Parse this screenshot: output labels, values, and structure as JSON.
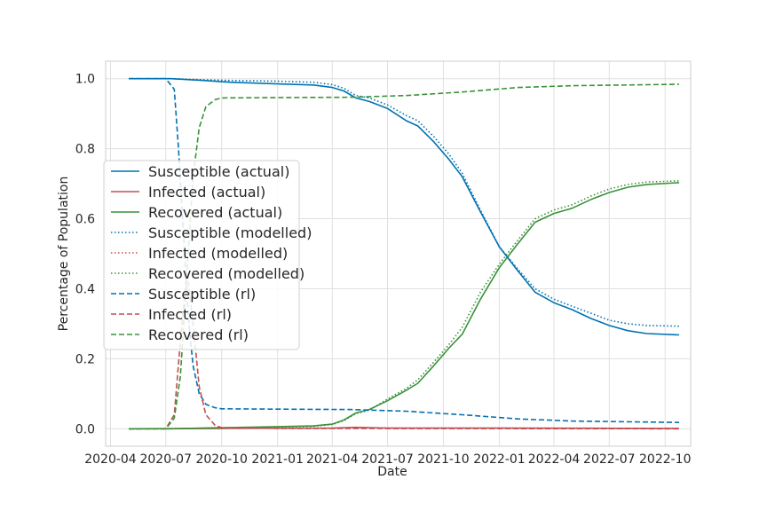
{
  "chart_data": {
    "type": "line",
    "title": "",
    "xlabel": "Date",
    "ylabel": "Percentage of Population",
    "xlim": [
      "2020-03-24",
      "2022-11-12"
    ],
    "ylim": [
      -0.05,
      1.05
    ],
    "x_ticks": [
      "2020-04-01",
      "2020-07-01",
      "2020-10-01",
      "2021-01-01",
      "2021-04-01",
      "2021-07-01",
      "2021-10-01",
      "2022-01-01",
      "2022-04-01",
      "2022-07-01",
      "2022-10-01"
    ],
    "x_tick_labels": [
      "2020-04",
      "2020-07",
      "2020-10",
      "2021-01",
      "2021-04",
      "2021-07",
      "2021-10",
      "2022-01",
      "2022-04",
      "2022-07",
      "2022-10"
    ],
    "y_ticks": [
      0.0,
      0.2,
      0.4,
      0.6,
      0.8,
      1.0
    ],
    "y_tick_labels": [
      "0.0",
      "0.2",
      "0.4",
      "0.6",
      "0.8",
      "1.0"
    ],
    "grid": true,
    "legend_position": "center-left",
    "series": [
      {
        "name": "Susceptible (actual)",
        "color": "#0072B2",
        "style": "solid",
        "x": [
          "2020-05-01",
          "2020-07-10",
          "2020-09-01",
          "2020-10-15",
          "2021-01-01",
          "2021-03-01",
          "2021-04-01",
          "2021-04-20",
          "2021-05-10",
          "2021-06-01",
          "2021-07-01",
          "2021-08-01",
          "2021-08-20",
          "2021-09-15",
          "2021-10-10",
          "2021-11-01",
          "2021-12-01",
          "2022-01-01",
          "2022-02-01",
          "2022-03-01",
          "2022-04-01",
          "2022-05-01",
          "2022-06-01",
          "2022-07-01",
          "2022-08-01",
          "2022-09-01",
          "2022-10-24"
        ],
        "values": [
          1.0,
          1.0,
          0.995,
          0.99,
          0.985,
          0.982,
          0.975,
          0.965,
          0.945,
          0.935,
          0.915,
          0.88,
          0.865,
          0.82,
          0.77,
          0.72,
          0.62,
          0.52,
          0.45,
          0.39,
          0.36,
          0.34,
          0.315,
          0.295,
          0.28,
          0.272,
          0.268
        ]
      },
      {
        "name": "Infected (actual)",
        "color": "#C44E52",
        "style": "solid",
        "x": [
          "2020-05-01",
          "2020-10-01",
          "2021-04-01",
          "2021-05-10",
          "2021-07-01",
          "2022-01-01",
          "2022-10-24"
        ],
        "values": [
          0.0,
          0.001,
          0.002,
          0.004,
          0.002,
          0.002,
          0.001
        ]
      },
      {
        "name": "Recovered (actual)",
        "color": "#3A923A",
        "style": "solid",
        "x": [
          "2020-05-01",
          "2020-07-10",
          "2020-10-01",
          "2021-01-01",
          "2021-03-01",
          "2021-04-01",
          "2021-04-20",
          "2021-05-10",
          "2021-06-01",
          "2021-07-01",
          "2021-08-01",
          "2021-08-20",
          "2021-09-15",
          "2021-10-10",
          "2021-11-01",
          "2021-12-01",
          "2022-01-01",
          "2022-02-01",
          "2022-03-01",
          "2022-04-01",
          "2022-05-01",
          "2022-06-01",
          "2022-07-01",
          "2022-08-01",
          "2022-09-01",
          "2022-10-24"
        ],
        "values": [
          0.0,
          0.0,
          0.003,
          0.006,
          0.008,
          0.013,
          0.025,
          0.045,
          0.055,
          0.08,
          0.11,
          0.13,
          0.18,
          0.23,
          0.27,
          0.37,
          0.46,
          0.53,
          0.59,
          0.615,
          0.63,
          0.655,
          0.675,
          0.69,
          0.698,
          0.703
        ]
      },
      {
        "name": "Susceptible (modelled)",
        "color": "#0072B2",
        "style": "dotted",
        "x": [
          "2020-05-01",
          "2020-07-10",
          "2020-09-01",
          "2020-10-15",
          "2021-01-01",
          "2021-03-01",
          "2021-04-01",
          "2021-04-20",
          "2021-05-10",
          "2021-06-01",
          "2021-07-01",
          "2021-08-01",
          "2021-08-20",
          "2021-09-15",
          "2021-10-10",
          "2021-11-01",
          "2021-12-01",
          "2022-01-01",
          "2022-02-01",
          "2022-03-01",
          "2022-04-01",
          "2022-05-01",
          "2022-06-01",
          "2022-07-01",
          "2022-08-01",
          "2022-09-01",
          "2022-10-24"
        ],
        "values": [
          1.0,
          1.0,
          0.997,
          0.995,
          0.993,
          0.99,
          0.983,
          0.973,
          0.952,
          0.945,
          0.925,
          0.895,
          0.88,
          0.835,
          0.785,
          0.73,
          0.625,
          0.52,
          0.455,
          0.4,
          0.37,
          0.35,
          0.33,
          0.31,
          0.3,
          0.295,
          0.293
        ]
      },
      {
        "name": "Infected (modelled)",
        "color": "#C44E52",
        "style": "dotted",
        "x": [
          "2020-05-01",
          "2020-10-01",
          "2021-04-01",
          "2021-05-10",
          "2021-07-01",
          "2022-01-01",
          "2022-10-24"
        ],
        "values": [
          0.0,
          0.001,
          0.002,
          0.003,
          0.002,
          0.002,
          0.001
        ]
      },
      {
        "name": "Recovered (modelled)",
        "color": "#3A923A",
        "style": "dotted",
        "x": [
          "2020-05-01",
          "2020-07-10",
          "2020-10-01",
          "2021-01-01",
          "2021-03-01",
          "2021-04-01",
          "2021-04-20",
          "2021-05-10",
          "2021-06-01",
          "2021-07-01",
          "2021-08-01",
          "2021-08-20",
          "2021-09-15",
          "2021-10-10",
          "2021-11-01",
          "2021-12-01",
          "2022-01-01",
          "2022-02-01",
          "2022-03-01",
          "2022-04-01",
          "2022-05-01",
          "2022-06-01",
          "2022-07-01",
          "2022-08-01",
          "2022-09-01",
          "2022-10-24"
        ],
        "values": [
          0.0,
          0.0,
          0.002,
          0.005,
          0.007,
          0.012,
          0.023,
          0.043,
          0.053,
          0.085,
          0.115,
          0.14,
          0.19,
          0.24,
          0.29,
          0.39,
          0.47,
          0.54,
          0.6,
          0.625,
          0.64,
          0.665,
          0.685,
          0.698,
          0.705,
          0.708
        ]
      },
      {
        "name": "Susceptible (rl)",
        "color": "#0072B2",
        "style": "dashed",
        "x": [
          "2020-05-01",
          "2020-07-01",
          "2020-07-15",
          "2020-07-22",
          "2020-08-01",
          "2020-08-08",
          "2020-08-15",
          "2020-08-25",
          "2020-09-05",
          "2020-09-20",
          "2020-10-01",
          "2021-01-01",
          "2021-05-01",
          "2021-08-01",
          "2021-11-01",
          "2022-02-01",
          "2022-05-01",
          "2022-10-24"
        ],
        "values": [
          1.0,
          1.0,
          0.97,
          0.8,
          0.5,
          0.3,
          0.18,
          0.1,
          0.07,
          0.06,
          0.057,
          0.056,
          0.055,
          0.05,
          0.04,
          0.028,
          0.022,
          0.018
        ]
      },
      {
        "name": "Infected (rl)",
        "color": "#C44E52",
        "style": "dashed",
        "x": [
          "2020-05-01",
          "2020-07-01",
          "2020-07-15",
          "2020-07-25",
          "2020-08-05",
          "2020-08-15",
          "2020-08-25",
          "2020-09-05",
          "2020-09-20",
          "2020-10-01",
          "2021-01-01",
          "2022-10-24"
        ],
        "values": [
          0.0,
          0.0,
          0.04,
          0.25,
          0.45,
          0.3,
          0.12,
          0.04,
          0.01,
          0.003,
          0.001,
          0.0
        ]
      },
      {
        "name": "Recovered (rl)",
        "color": "#3A923A",
        "style": "dashed",
        "x": [
          "2020-05-01",
          "2020-07-01",
          "2020-07-15",
          "2020-07-25",
          "2020-08-05",
          "2020-08-15",
          "2020-08-25",
          "2020-09-05",
          "2020-09-20",
          "2020-10-01",
          "2021-01-01",
          "2021-05-01",
          "2021-08-01",
          "2021-11-01",
          "2022-02-01",
          "2022-05-01",
          "2022-10-24"
        ],
        "values": [
          0.0,
          0.0,
          0.03,
          0.15,
          0.45,
          0.72,
          0.86,
          0.92,
          0.94,
          0.945,
          0.946,
          0.947,
          0.952,
          0.962,
          0.975,
          0.98,
          0.984
        ]
      }
    ]
  }
}
